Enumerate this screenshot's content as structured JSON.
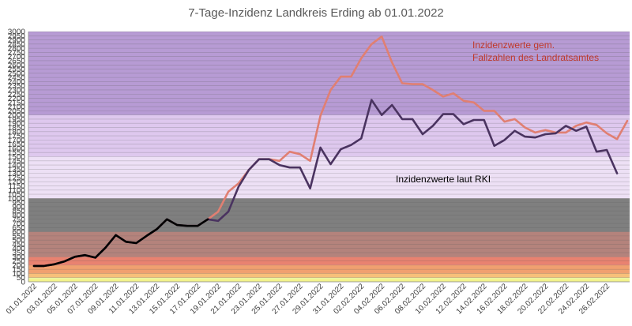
{
  "chart_data": {
    "type": "line",
    "title": "7-Tage-Inzidenz Landkreis Erding ab 01.01.2022",
    "xlabel": "",
    "ylabel": "",
    "ylim": [
      0,
      3000
    ],
    "y_ticks": [
      0,
      50,
      100,
      150,
      200,
      250,
      300,
      350,
      400,
      450,
      500,
      550,
      600,
      650,
      700,
      750,
      800,
      850,
      900,
      950,
      1000,
      1050,
      1100,
      1150,
      1200,
      1250,
      1300,
      1350,
      1400,
      1450,
      1500,
      1550,
      1600,
      1650,
      1700,
      1750,
      1800,
      1850,
      1900,
      1950,
      2000,
      2050,
      2100,
      2150,
      2200,
      2250,
      2300,
      2350,
      2400,
      2450,
      2500,
      2550,
      2600,
      2650,
      2700,
      2750,
      2800,
      2850,
      2900,
      2950,
      3000
    ],
    "grid": true,
    "x_tick_labels": [
      "01.01.2022",
      "03.01.2022",
      "05.01.2022",
      "07.01.2022",
      "09.01.2022",
      "11.01.2022",
      "13.01.2022",
      "15.01.2022",
      "17.01.2022",
      "19.01.2022",
      "21.01.2022",
      "23.01.2022",
      "25.01.2022",
      "27.01.2022",
      "29.01.2022",
      "31.01.2022",
      "02.02.2022",
      "04.02.2022",
      "06.02.2022",
      "08.02.2022",
      "10.02.2022",
      "12.02.2022",
      "14.02.2022",
      "16.02.2022",
      "18.02.2022",
      "20.02.2022",
      "22.02.2022",
      "24.02.2022",
      "26.02.2022"
    ],
    "bands": [
      {
        "from": 0,
        "to": 35,
        "color": "#f2f28a"
      },
      {
        "from": 35,
        "to": 50,
        "color": "#e8f5a0"
      },
      {
        "from": 50,
        "to": 100,
        "color": "#f7c07a"
      },
      {
        "from": 100,
        "to": 200,
        "color": "#f0a070"
      },
      {
        "from": 200,
        "to": 300,
        "color": "#e98270"
      },
      {
        "from": 300,
        "to": 600,
        "color": "#b4837c"
      },
      {
        "from": 600,
        "to": 1000,
        "color": "#7f7f7f"
      },
      {
        "from": 1000,
        "to": 1500,
        "color": "#ede0f5"
      },
      {
        "from": 1500,
        "to": 2000,
        "color": "#dec8ee"
      },
      {
        "from": 2000,
        "to": 3000,
        "color": "#b79bd4"
      }
    ],
    "series": [
      {
        "name": "Inzidenzwerte gem. Fallzahlen des Landratsamtes",
        "color": "#e07f72",
        "values": [
          190,
          190,
          210,
          245,
          300,
          320,
          290,
          410,
          560,
          480,
          465,
          550,
          630,
          750,
          680,
          670,
          670,
          750,
          840,
          1080,
          1180,
          1340,
          1470,
          1470,
          1450,
          1560,
          1530,
          1450,
          1990,
          2300,
          2460,
          2460,
          2680,
          2850,
          2940,
          2630,
          2380,
          2370,
          2370,
          2300,
          2220,
          2260,
          2170,
          2150,
          2050,
          2050,
          1920,
          1950,
          1850,
          1790,
          1820,
          1790,
          1790,
          1870,
          1910,
          1880,
          1780,
          1710,
          1930
        ]
      },
      {
        "name": "Inzidenzwerte laut RKI",
        "color": "#4a3360",
        "values": [
          190,
          190,
          210,
          245,
          300,
          320,
          290,
          410,
          560,
          480,
          465,
          550,
          630,
          750,
          680,
          670,
          670,
          750,
          730,
          840,
          1140,
          1340,
          1470,
          1470,
          1400,
          1370,
          1370,
          1120,
          1610,
          1410,
          1590,
          1640,
          1720,
          2180,
          2000,
          2120,
          1950,
          1950,
          1770,
          1870,
          2010,
          2010,
          1890,
          1940,
          1940,
          1630,
          1700,
          1810,
          1740,
          1730,
          1770,
          1780,
          1870,
          1810,
          1860,
          1560,
          1580,
          1300
        ]
      }
    ],
    "annotations": [
      {
        "lines": [
          "Inzidenzwerte gem.",
          "Fallzahlen des Landratsamtes"
        ],
        "color": "#c0392b"
      },
      {
        "lines": [
          "Inzidenzwerte laut RKI"
        ],
        "color": "#000000"
      }
    ]
  }
}
